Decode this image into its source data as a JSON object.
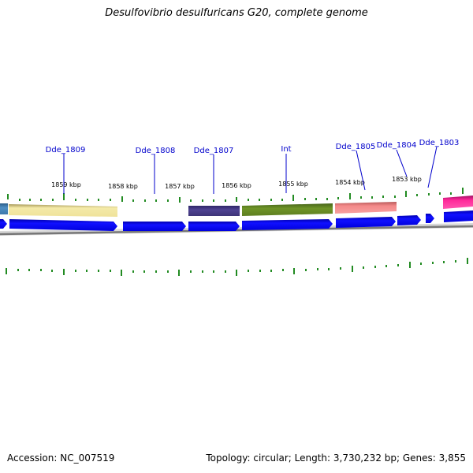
{
  "title": "Desulfovibrio desulfuricans G20, complete genome",
  "footer": {
    "accession": "Accession: NC_007519",
    "topology": "Topology: circular; Length: 3,730,232 bp; Genes: 3,855"
  },
  "kbp_labels": [
    "1859 kbp",
    "1858 kbp",
    "1857 kbp",
    "1856 kbp",
    "1855 kbp",
    "1854 kbp",
    "1853 kbp"
  ],
  "gene_names": [
    "Dde_1809",
    "Dde_1808",
    "Dde_1807",
    "Int",
    "Dde_1805",
    "Dde_1804",
    "Dde_1803"
  ],
  "colors": {
    "forward_genes": "#0000ee",
    "tick": "#228b22",
    "backbone": "#777777",
    "label": "#0000cc",
    "feature_1809": "#f2e6a0",
    "feature_1807": "#4b3f8c",
    "feature_int": "#6b8e23",
    "feature_1805": "#f08080",
    "feature_1803": "#ff1493",
    "feature_left": "#4682b4"
  }
}
